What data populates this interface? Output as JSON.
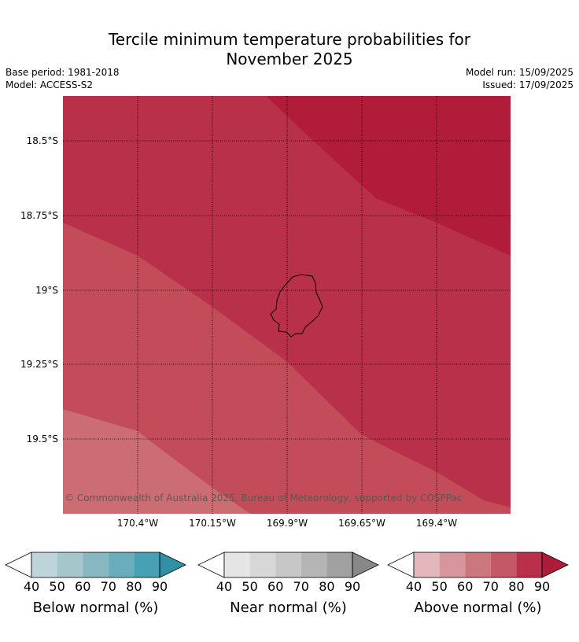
{
  "title_line1": "Tercile minimum temperature probabilities for",
  "title_line2": "November 2025",
  "base_period": "Base period: 1981-2018",
  "model": "Model: ACCESS-S2",
  "model_run": "Model run: 15/09/2025",
  "issued": "Issued: 17/09/2025",
  "copyright": "© Commonwealth of Australia 2025, Bureau of Meteorology, supported by COSPPac",
  "map": {
    "lat_ticks": [
      "18.5°S",
      "18.75°S",
      "19°S",
      "19.25°S",
      "19.5°S"
    ],
    "lon_ticks": [
      "170.4°W",
      "170.15°W",
      "169.9°W",
      "169.65°W",
      "169.4°W"
    ],
    "zone_colors": {
      "above_90": "#b11c3b",
      "above_80": "#b9304a",
      "above_70": "#c24d58",
      "above_60": "#cc6d73"
    }
  },
  "colorbars": [
    {
      "title": "Below normal (%)",
      "ticks": [
        "40",
        "50",
        "60",
        "70",
        "80",
        "90"
      ],
      "colors": [
        "#bdd4da",
        "#a5c6cb",
        "#88b6c1",
        "#6aaebb",
        "#47a0b3",
        "#2f90a6"
      ]
    },
    {
      "title": "Near normal (%)",
      "ticks": [
        "40",
        "50",
        "60",
        "70",
        "80",
        "90"
      ],
      "colors": [
        "#e5e5e5",
        "#d7d7d7",
        "#c7c7c7",
        "#b5b5b5",
        "#a1a1a1",
        "#888888"
      ]
    },
    {
      "title": "Above normal (%)",
      "ticks": [
        "40",
        "50",
        "60",
        "70",
        "80",
        "90"
      ],
      "colors": [
        "#e2b8bd",
        "#d6969c",
        "#cc777d",
        "#c45866",
        "#ba304a",
        "#ae1c3c"
      ]
    }
  ]
}
